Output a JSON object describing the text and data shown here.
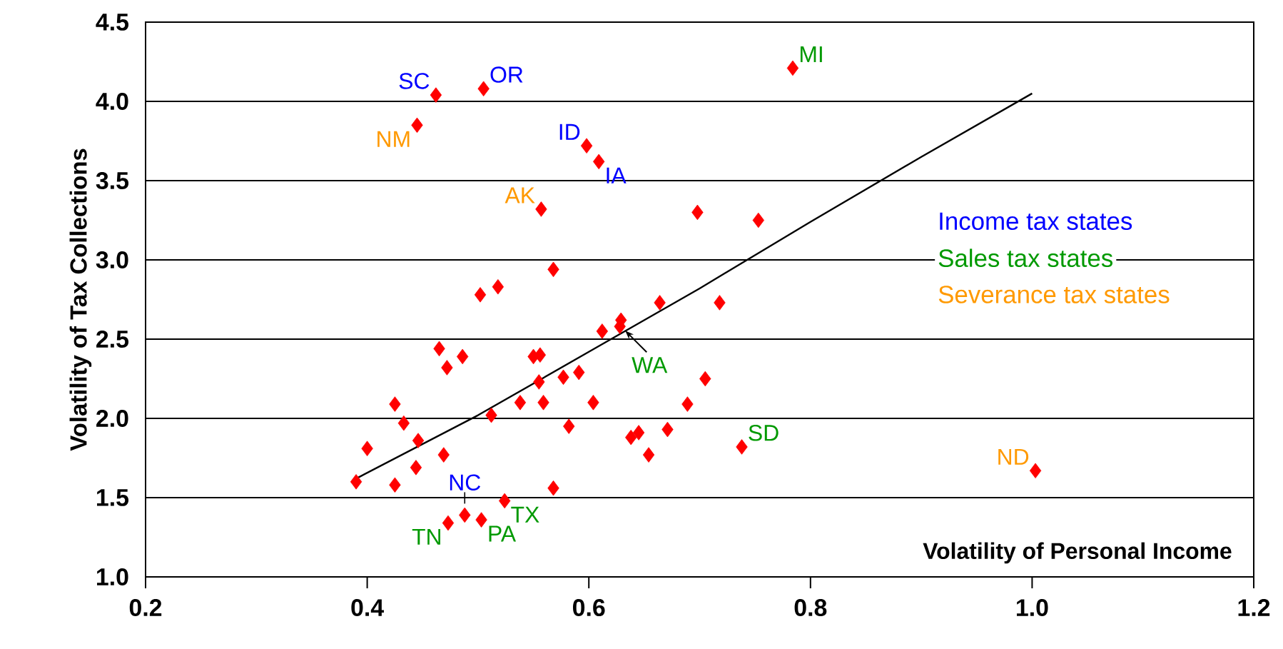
{
  "chart_data": {
    "type": "scatter",
    "xlabel": "Volatility of Personal Income",
    "ylabel": "Volatility of Tax Collections",
    "xlim": [
      0.2,
      1.2
    ],
    "xticks": [
      0.2,
      0.4,
      0.6,
      0.8,
      {
        "value": 1.0,
        "label": "1.0"
      },
      1.2
    ],
    "ylim": [
      1.0,
      4.5
    ],
    "yticks": [
      {
        "value": 1.0,
        "label": "1.0"
      },
      1.5,
      {
        "value": 2.0,
        "label": "2.0"
      },
      2.5,
      {
        "value": 3.0,
        "label": "3.0"
      },
      3.5,
      {
        "value": 4.0,
        "label": "4.0"
      },
      4.5
    ],
    "grid": "y",
    "marker": "diamond",
    "series": [
      {
        "color": "#ff0000",
        "x": [
          0.39,
          0.4,
          0.425,
          0.425,
          0.433,
          0.444,
          0.446,
          0.445,
          0.462,
          0.465,
          0.469,
          0.472,
          0.473,
          0.486,
          0.488,
          0.502,
          0.503,
          0.505,
          0.512,
          0.518,
          0.524,
          0.538,
          0.55,
          0.556,
          0.555,
          0.559,
          0.557,
          0.568,
          0.568,
          0.577,
          0.582,
          0.591,
          0.598,
          0.604,
          0.609,
          0.612,
          0.628,
          0.629,
          0.638,
          0.645,
          0.654,
          0.664,
          0.671,
          0.689,
          0.698,
          0.705,
          0.718,
          0.738,
          0.753,
          0.784,
          1.003
        ],
        "values": [
          1.6,
          1.81,
          1.58,
          2.09,
          1.97,
          1.69,
          1.86,
          3.85,
          4.04,
          2.44,
          1.77,
          2.32,
          1.34,
          2.39,
          1.39,
          2.78,
          1.36,
          4.08,
          2.02,
          2.83,
          1.48,
          2.1,
          2.39,
          2.4,
          2.23,
          2.1,
          3.32,
          2.94,
          1.56,
          2.26,
          1.95,
          2.29,
          3.72,
          2.1,
          3.62,
          2.55,
          2.58,
          2.62,
          1.88,
          1.91,
          1.77,
          2.73,
          1.93,
          2.09,
          3.3,
          2.25,
          2.73,
          1.82,
          3.25,
          4.21,
          1.67
        ]
      },
      {
        "type": "line",
        "color": "#000000",
        "marker": "none",
        "x": [
          0.39,
          0.5,
          0.6,
          0.7,
          0.8,
          0.9,
          1.0
        ],
        "values": [
          1.62,
          2.02,
          2.42,
          2.82,
          3.24,
          3.65,
          4.05
        ]
      }
    ],
    "annotations": [
      {
        "text": "SC",
        "x": 0.462,
        "y": 4.04
      },
      {
        "text": "OR",
        "x": 0.505,
        "y": 4.08
      },
      {
        "text": "NM",
        "x": 0.445,
        "y": 3.85
      },
      {
        "text": "ID",
        "x": 0.598,
        "y": 3.72
      },
      {
        "text": "IA",
        "x": 0.609,
        "y": 3.62
      },
      {
        "text": "AK",
        "x": 0.557,
        "y": 3.32
      },
      {
        "text": "MI",
        "x": 0.784,
        "y": 4.21
      },
      {
        "text": "WA",
        "x": 0.629,
        "y": 2.58
      },
      {
        "text": "SD",
        "x": 0.738,
        "y": 1.82
      },
      {
        "text": "ND",
        "x": 1.003,
        "y": 1.67
      },
      {
        "text": "NC",
        "x": 0.488,
        "y": 1.39
      },
      {
        "text": "TN",
        "x": 0.473,
        "y": 1.34
      },
      {
        "text": "PA",
        "x": 0.503,
        "y": 1.36
      },
      {
        "text": "TX",
        "x": 0.524,
        "y": 1.48
      },
      "Income tax states",
      "Sales tax states",
      "Severance tax states"
    ]
  }
}
